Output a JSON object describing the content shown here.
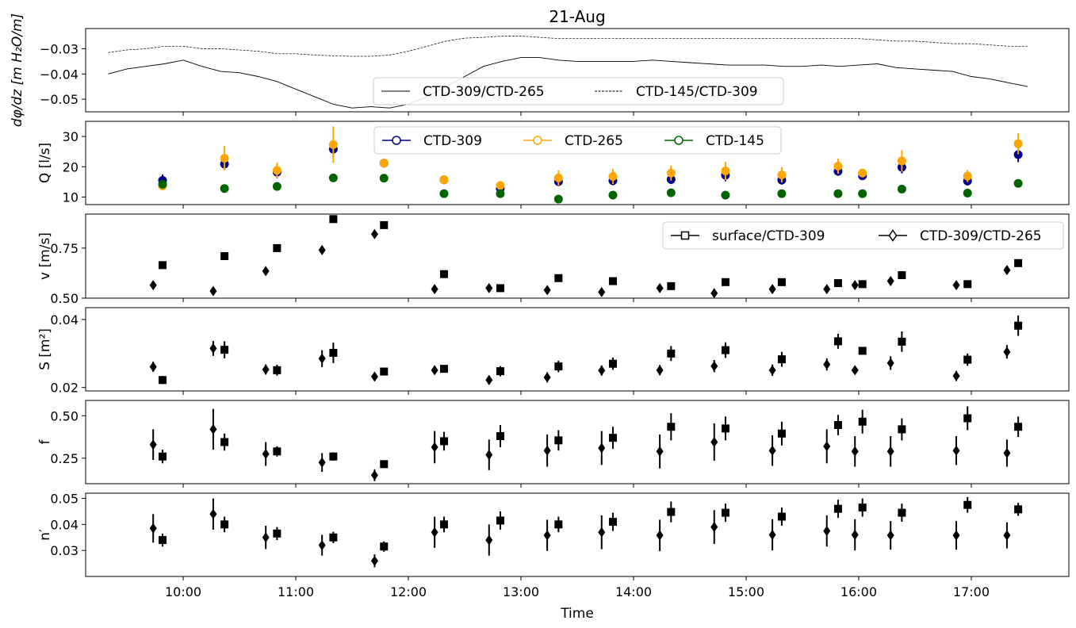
{
  "figure": {
    "title": "21-Aug",
    "xlabel": "Time"
  },
  "chart_data": [
    {
      "type": "line",
      "ylabel_html": "d&#966;/dz [m H₂O/m]",
      "ylabel": "dφ/dz [m H₂O/m]",
      "ylim": [
        -0.055,
        -0.022
      ],
      "yticks": [
        -0.05,
        -0.04,
        -0.03
      ],
      "ytick_labels": [
        "−0.05",
        "−0.04",
        "−0.03"
      ],
      "legend": {
        "placement": "lower-center",
        "entries": [
          "CTD-309/CTD-265",
          "CTD-145/CTD-309"
        ]
      },
      "series": [
        {
          "name": "CTD-309/CTD-265",
          "style": "solid",
          "color": "#000000",
          "x": [
            "09:20",
            "09:30",
            "09:40",
            "09:50",
            "10:00",
            "10:10",
            "10:20",
            "10:30",
            "10:40",
            "10:50",
            "11:00",
            "11:10",
            "11:20",
            "11:30",
            "11:40",
            "11:50",
            "12:00",
            "12:10",
            "12:20",
            "12:30",
            "12:40",
            "12:50",
            "13:00",
            "13:10",
            "13:20",
            "13:30",
            "13:40",
            "13:50",
            "14:00",
            "14:10",
            "14:20",
            "14:30",
            "14:40",
            "14:50",
            "15:00",
            "15:10",
            "15:20",
            "15:30",
            "15:40",
            "15:50",
            "16:00",
            "16:10",
            "16:20",
            "16:30",
            "16:40",
            "16:50",
            "17:00",
            "17:10",
            "17:20",
            "17:30"
          ],
          "y": [
            -0.04,
            -0.038,
            -0.037,
            -0.036,
            -0.0345,
            -0.037,
            -0.039,
            -0.0395,
            -0.041,
            -0.043,
            -0.046,
            -0.049,
            -0.052,
            -0.0535,
            -0.053,
            -0.0535,
            -0.052,
            -0.049,
            -0.045,
            -0.041,
            -0.037,
            -0.035,
            -0.0335,
            -0.0335,
            -0.0345,
            -0.035,
            -0.035,
            -0.035,
            -0.035,
            -0.0345,
            -0.035,
            -0.0355,
            -0.036,
            -0.0365,
            -0.0365,
            -0.0365,
            -0.037,
            -0.037,
            -0.0365,
            -0.037,
            -0.0365,
            -0.036,
            -0.0375,
            -0.038,
            -0.0385,
            -0.039,
            -0.041,
            -0.042,
            -0.0435,
            -0.045
          ]
        },
        {
          "name": "CTD-145/CTD-309",
          "style": "dashed",
          "color": "#000000",
          "x": [
            "09:20",
            "09:30",
            "09:40",
            "09:50",
            "10:00",
            "10:10",
            "10:20",
            "10:30",
            "10:40",
            "10:50",
            "11:00",
            "11:10",
            "11:20",
            "11:30",
            "11:40",
            "11:50",
            "12:00",
            "12:10",
            "12:20",
            "12:30",
            "12:40",
            "12:50",
            "13:00",
            "13:10",
            "13:20",
            "13:30",
            "13:40",
            "13:50",
            "14:00",
            "14:10",
            "14:20",
            "14:30",
            "14:40",
            "14:50",
            "15:00",
            "15:10",
            "15:20",
            "15:30",
            "15:40",
            "15:50",
            "16:00",
            "16:10",
            "16:20",
            "16:30",
            "16:40",
            "16:50",
            "17:00",
            "17:10",
            "17:20",
            "17:30"
          ],
          "y": [
            -0.0315,
            -0.0305,
            -0.03,
            -0.029,
            -0.029,
            -0.03,
            -0.03,
            -0.0305,
            -0.031,
            -0.032,
            -0.032,
            -0.0325,
            -0.0328,
            -0.033,
            -0.033,
            -0.0325,
            -0.031,
            -0.029,
            -0.027,
            -0.0258,
            -0.0255,
            -0.025,
            -0.025,
            -0.0255,
            -0.026,
            -0.026,
            -0.026,
            -0.026,
            -0.026,
            -0.026,
            -0.026,
            -0.026,
            -0.026,
            -0.026,
            -0.026,
            -0.026,
            -0.026,
            -0.026,
            -0.026,
            -0.026,
            -0.026,
            -0.0265,
            -0.027,
            -0.027,
            -0.0275,
            -0.028,
            -0.028,
            -0.0285,
            -0.029,
            -0.029
          ]
        }
      ]
    },
    {
      "type": "scatter",
      "ylabel": "Q [l/s]",
      "ylim": [
        7.5,
        35
      ],
      "yticks": [
        10,
        20,
        30
      ],
      "ytick_labels": [
        "10",
        "20",
        "30"
      ],
      "legend": {
        "placement": "upper-center",
        "entries": [
          "CTD-309",
          "CTD-265",
          "CTD-145"
        ]
      },
      "series": [
        {
          "name": "CTD-309",
          "color": "#00008b",
          "x": [
            "09:49",
            "10:22",
            "10:50",
            "11:20",
            "11:47",
            "12:19",
            "12:49",
            "13:20",
            "13:49",
            "14:20",
            "14:49",
            "15:19",
            "15:49",
            "16:02",
            "16:23",
            "16:58",
            "17:25"
          ],
          "y": [
            15.5,
            20.9,
            18.2,
            25.8,
            21.2,
            15.7,
            12.8,
            15.1,
            15.4,
            15.8,
            17.2,
            15.6,
            18.5,
            17.0,
            19.8,
            15.3,
            24.0
          ],
          "err": [
            2,
            2,
            2,
            2.5,
            1,
            1,
            1,
            1.5,
            1.5,
            1.5,
            2,
            1.5,
            1.5,
            1,
            2,
            1.5,
            2.5
          ]
        },
        {
          "name": "CTD-265",
          "color": "#ffa500",
          "x": [
            "09:49",
            "10:22",
            "10:50",
            "11:20",
            "11:47",
            "12:19",
            "12:49",
            "13:20",
            "13:49",
            "14:20",
            "14:49",
            "15:19",
            "15:49",
            "16:02",
            "16:23",
            "16:58",
            "17:25"
          ],
          "y": [
            13.7,
            22.8,
            18.8,
            27.3,
            21.2,
            15.7,
            13.8,
            16.3,
            16.8,
            17.9,
            18.6,
            17.3,
            20.2,
            17.9,
            21.9,
            16.9,
            27.6
          ],
          "err": [
            1.5,
            4,
            2.5,
            6,
            1,
            0.8,
            1.5,
            2.5,
            2.5,
            2.5,
            3,
            2.5,
            2.5,
            1,
            3.5,
            2,
            3.5
          ]
        },
        {
          "name": "CTD-145",
          "color": "#006400",
          "x": [
            "09:49",
            "10:22",
            "10:50",
            "11:20",
            "11:47",
            "12:19",
            "12:49",
            "13:20",
            "13:49",
            "14:20",
            "14:49",
            "15:19",
            "15:49",
            "16:02",
            "16:23",
            "16:58",
            "17:25"
          ],
          "y": [
            14.2,
            12.8,
            13.5,
            16.3,
            16.2,
            11.1,
            11.1,
            9.3,
            10.6,
            11.4,
            10.6,
            11.1,
            11.1,
            11.1,
            12.6,
            11.3,
            14.5
          ],
          "err": [
            0,
            0,
            0,
            0,
            0,
            0,
            0,
            0,
            0,
            0,
            0,
            0,
            0,
            0,
            0,
            0,
            0
          ]
        }
      ]
    },
    {
      "type": "scatter",
      "ylabel": "v [m/s]",
      "ylim": [
        0.5,
        0.92
      ],
      "yticks": [
        0.5,
        0.75
      ],
      "ytick_labels": [
        "0.50",
        "0.75"
      ],
      "legend": {
        "placement": "upper-right",
        "entries": [
          "surface/CTD-309",
          "CTD-309/CTD-265"
        ]
      },
      "series": [
        {
          "name": "surface/CTD-309",
          "marker": "square",
          "x": [
            "09:49",
            "10:22",
            "10:50",
            "11:20",
            "11:47",
            "12:19",
            "12:49",
            "13:20",
            "13:49",
            "14:20",
            "14:49",
            "15:19",
            "15:49",
            "16:02",
            "16:23",
            "16:58",
            "17:25"
          ],
          "y": [
            0.665,
            0.71,
            0.75,
            0.895,
            0.865,
            0.62,
            0.55,
            0.6,
            0.585,
            0.56,
            0.58,
            0.58,
            0.575,
            0.57,
            0.615,
            0.57,
            0.675
          ],
          "err": [
            0,
            0,
            0,
            0,
            0,
            0,
            0,
            0,
            0,
            0,
            0,
            0,
            0,
            0,
            0,
            0,
            0
          ]
        },
        {
          "name": "CTD-309/CTD-265",
          "marker": "diamond",
          "x": [
            "09:44",
            "10:16",
            "10:44",
            "11:14",
            "11:42",
            "12:14",
            "12:43",
            "13:14",
            "13:43",
            "14:14",
            "14:43",
            "15:14",
            "15:43",
            "15:58",
            "16:17",
            "16:52",
            "17:19"
          ],
          "y": [
            0.565,
            0.535,
            0.635,
            0.74,
            0.82,
            0.545,
            0.55,
            0.54,
            0.53,
            0.55,
            0.525,
            0.545,
            0.545,
            0.565,
            0.585,
            0.565,
            0.64
          ],
          "err": [
            0,
            0,
            0,
            0,
            0,
            0,
            0,
            0,
            0,
            0,
            0,
            0,
            0,
            0,
            0,
            0,
            0
          ]
        }
      ]
    },
    {
      "type": "scatter",
      "ylabel_html": "S [m²]",
      "ylabel": "S [m²]",
      "ylim": [
        0.019,
        0.0435
      ],
      "yticks": [
        0.02,
        0.04
      ],
      "ytick_labels": [
        "0.02",
        "0.04"
      ],
      "legend": null,
      "series": [
        {
          "name": "surface/CTD-309",
          "marker": "square",
          "x": [
            "09:49",
            "10:22",
            "10:50",
            "11:20",
            "11:47",
            "12:19",
            "12:49",
            "13:20",
            "13:49",
            "14:20",
            "14:49",
            "15:19",
            "15:49",
            "16:02",
            "16:23",
            "16:58",
            "17:25"
          ],
          "y": [
            0.0222,
            0.0311,
            0.0251,
            0.0302,
            0.0247,
            0.0255,
            0.0248,
            0.0262,
            0.027,
            0.03,
            0.031,
            0.0283,
            0.0336,
            0.0308,
            0.0335,
            0.0282,
            0.0382
          ],
          "err": [
            0.0012,
            0.0025,
            0.0016,
            0.003,
            0.001,
            0.0008,
            0.0015,
            0.0017,
            0.0018,
            0.0022,
            0.0023,
            0.0022,
            0.0022,
            0.0008,
            0.003,
            0.0018,
            0.003
          ]
        },
        {
          "name": "CTD-309/CTD-265",
          "marker": "diamond",
          "x": [
            "09:44",
            "10:16",
            "10:44",
            "11:14",
            "11:42",
            "12:14",
            "12:43",
            "13:14",
            "13:43",
            "14:14",
            "14:43",
            "15:14",
            "15:43",
            "15:58",
            "16:17",
            "16:52",
            "17:19"
          ],
          "y": [
            0.0261,
            0.0315,
            0.0253,
            0.0285,
            0.0232,
            0.0251,
            0.0222,
            0.023,
            0.025,
            0.0251,
            0.0263,
            0.0251,
            0.0268,
            0.0251,
            0.0272,
            0.0234,
            0.0305
          ],
          "err": [
            0.0015,
            0.0022,
            0.0015,
            0.0025,
            0.0008,
            0.0006,
            0.0013,
            0.0015,
            0.0015,
            0.0015,
            0.0018,
            0.0017,
            0.0018,
            0.0006,
            0.002,
            0.0015,
            0.002
          ]
        }
      ]
    },
    {
      "type": "scatter",
      "ylabel": "f",
      "ylim": [
        0.1,
        0.59
      ],
      "yticks": [
        0.25,
        0.5
      ],
      "ytick_labels": [
        "0.25",
        "0.50"
      ],
      "legend": null,
      "series": [
        {
          "name": "surface/CTD-309",
          "marker": "square",
          "x": [
            "09:49",
            "10:22",
            "10:50",
            "11:20",
            "11:47",
            "12:19",
            "12:49",
            "13:20",
            "13:49",
            "14:20",
            "14:49",
            "15:19",
            "15:49",
            "16:02",
            "16:23",
            "16:58",
            "17:25"
          ],
          "y": [
            0.26,
            0.345,
            0.29,
            0.26,
            0.215,
            0.35,
            0.38,
            0.355,
            0.37,
            0.435,
            0.425,
            0.395,
            0.445,
            0.465,
            0.42,
            0.485,
            0.435
          ],
          "err": [
            0.04,
            0.05,
            0.03,
            0.025,
            0.02,
            0.055,
            0.065,
            0.06,
            0.065,
            0.08,
            0.07,
            0.07,
            0.06,
            0.07,
            0.065,
            0.07,
            0.06
          ]
        },
        {
          "name": "CTD-309/CTD-265",
          "marker": "diamond",
          "x": [
            "09:44",
            "10:16",
            "10:44",
            "11:14",
            "11:42",
            "12:14",
            "12:43",
            "13:14",
            "13:43",
            "14:14",
            "14:43",
            "15:14",
            "15:43",
            "15:58",
            "16:17",
            "16:52",
            "17:19"
          ],
          "y": [
            0.33,
            0.42,
            0.275,
            0.225,
            0.15,
            0.315,
            0.27,
            0.295,
            0.31,
            0.29,
            0.345,
            0.295,
            0.32,
            0.29,
            0.29,
            0.295,
            0.28
          ],
          "err": [
            0.09,
            0.12,
            0.07,
            0.055,
            0.035,
            0.095,
            0.09,
            0.095,
            0.1,
            0.1,
            0.11,
            0.09,
            0.1,
            0.09,
            0.09,
            0.085,
            0.08
          ]
        }
      ]
    },
    {
      "type": "scatter",
      "ylabel": "n′",
      "ylim": [
        0.02,
        0.052
      ],
      "yticks": [
        0.03,
        0.04,
        0.05
      ],
      "ytick_labels": [
        "0.03",
        "0.04",
        "0.05"
      ],
      "legend": null,
      "series": [
        {
          "name": "surface/CTD-309",
          "marker": "square",
          "x": [
            "09:49",
            "10:22",
            "10:50",
            "11:20",
            "11:47",
            "12:19",
            "12:49",
            "13:20",
            "13:49",
            "14:20",
            "14:49",
            "15:19",
            "15:49",
            "16:02",
            "16:23",
            "16:58",
            "17:25"
          ],
          "y": [
            0.034,
            0.04,
            0.0365,
            0.035,
            0.0315,
            0.04,
            0.0415,
            0.04,
            0.041,
            0.0448,
            0.0445,
            0.043,
            0.046,
            0.0465,
            0.0445,
            0.0475,
            0.0458
          ],
          "err": [
            0.0025,
            0.003,
            0.0025,
            0.0022,
            0.002,
            0.003,
            0.0035,
            0.003,
            0.0035,
            0.004,
            0.0035,
            0.0035,
            0.0035,
            0.0035,
            0.0035,
            0.003,
            0.0025
          ]
        },
        {
          "name": "CTD-309/CTD-265",
          "marker": "diamond",
          "x": [
            "09:44",
            "10:16",
            "10:44",
            "11:14",
            "11:42",
            "12:14",
            "12:43",
            "13:14",
            "13:43",
            "14:14",
            "14:43",
            "15:14",
            "15:43",
            "15:58",
            "16:17",
            "16:52",
            "17:19"
          ],
          "y": [
            0.0385,
            0.044,
            0.035,
            0.032,
            0.026,
            0.037,
            0.034,
            0.0358,
            0.037,
            0.0358,
            0.039,
            0.036,
            0.0375,
            0.036,
            0.0358,
            0.0358,
            0.0358
          ],
          "err": [
            0.0055,
            0.006,
            0.0045,
            0.004,
            0.0025,
            0.006,
            0.006,
            0.006,
            0.0065,
            0.006,
            0.0065,
            0.006,
            0.006,
            0.006,
            0.0055,
            0.0055,
            0.005
          ]
        }
      ]
    }
  ],
  "xaxis": {
    "range": [
      "09:08",
      "17:52"
    ],
    "ticks": [
      "10:00",
      "11:00",
      "12:00",
      "13:00",
      "14:00",
      "15:00",
      "16:00",
      "17:00"
    ]
  }
}
